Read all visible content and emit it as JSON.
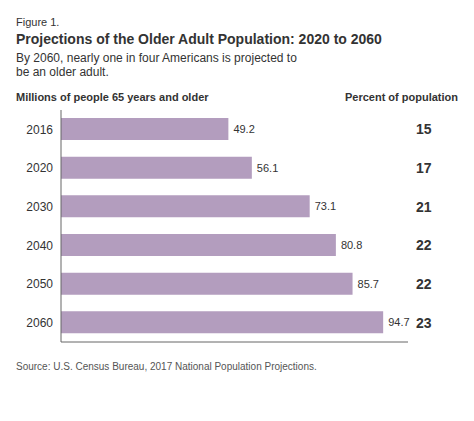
{
  "chart_data": {
    "type": "bar",
    "orientation": "horizontal",
    "figure_label": "Figure 1.",
    "title": "Projections of the Older Adult Population: 2020 to 2060",
    "subtitle": "By 2060, nearly one in four Americans is projected to\nbe an older adult.",
    "xlabel": "Millions of people 65 years and older",
    "percents_label": "Percent of population",
    "source": "Source: U.S. Census Bureau, 2017 National Population Projections.",
    "categories": [
      "2016",
      "2020",
      "2030",
      "2040",
      "2050",
      "2060"
    ],
    "values": [
      49.2,
      56.1,
      73.1,
      80.8,
      85.7,
      94.7
    ],
    "percents": [
      15,
      17,
      21,
      22,
      22,
      23
    ],
    "color": "#b39dbe",
    "xlim": [
      0,
      102
    ],
    "data_labels": true,
    "tick_labels": "y"
  }
}
